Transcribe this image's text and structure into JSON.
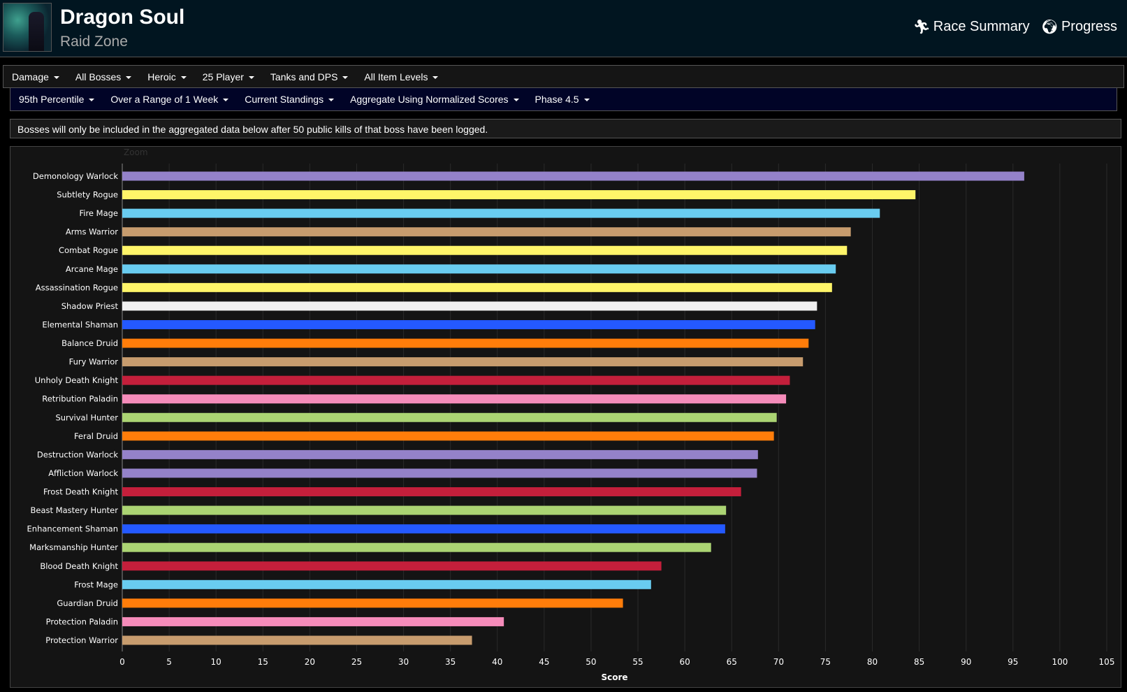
{
  "header": {
    "title": "Dragon Soul",
    "subtitle": "Raid Zone",
    "links": [
      {
        "icon": "running-icon",
        "label": "Race Summary"
      },
      {
        "icon": "globe-icon",
        "label": "Progress"
      }
    ]
  },
  "nav1": [
    "Damage",
    "All Bosses",
    "Heroic",
    "25 Player",
    "Tanks and DPS",
    "All Item Levels"
  ],
  "nav2": [
    "95th Percentile",
    "Over a Range of 1 Week",
    "Current Standings",
    "Aggregate Using Normalized Scores",
    "Phase 4.5"
  ],
  "notice": "Bosses will only be included in the aggregated data below after 50 public kills of that boss have been logged.",
  "chart_data": {
    "type": "bar",
    "orientation": "horizontal",
    "zoom_label": "Zoom",
    "xlabel": "Score",
    "ylabel": "",
    "xlim": [
      0,
      105
    ],
    "xticks": [
      0,
      5,
      10,
      15,
      20,
      25,
      30,
      35,
      40,
      45,
      50,
      55,
      60,
      65,
      70,
      75,
      80,
      85,
      90,
      95,
      100,
      105
    ],
    "grid": true,
    "categories": [
      "Demonology Warlock",
      "Subtlety Rogue",
      "Fire Mage",
      "Arms Warrior",
      "Combat Rogue",
      "Arcane Mage",
      "Assassination Rogue",
      "Shadow Priest",
      "Elemental Shaman",
      "Balance Druid",
      "Fury Warrior",
      "Unholy Death Knight",
      "Retribution Paladin",
      "Survival Hunter",
      "Feral Druid",
      "Destruction Warlock",
      "Affliction Warlock",
      "Frost Death Knight",
      "Beast Mastery Hunter",
      "Enhancement Shaman",
      "Marksmanship Hunter",
      "Blood Death Knight",
      "Frost Mage",
      "Guardian Druid",
      "Protection Paladin",
      "Protection Warrior"
    ],
    "values": [
      96.2,
      84.6,
      80.8,
      77.7,
      77.3,
      76.1,
      75.7,
      74.1,
      73.9,
      73.2,
      72.6,
      71.2,
      70.8,
      69.8,
      69.5,
      67.8,
      67.7,
      66.0,
      64.4,
      64.3,
      62.8,
      57.5,
      56.4,
      53.4,
      40.7,
      37.3
    ],
    "colors": [
      "#9482C9",
      "#FFF569",
      "#69CCF0",
      "#C79C6E",
      "#FFF569",
      "#69CCF0",
      "#FFF569",
      "#F0F0F0",
      "#2459FF",
      "#FF7D0A",
      "#C79C6E",
      "#C41F3B",
      "#F58CBA",
      "#ABD473",
      "#FF7D0A",
      "#9482C9",
      "#9482C9",
      "#C41F3B",
      "#ABD473",
      "#2459FF",
      "#ABD473",
      "#C41F3B",
      "#69CCF0",
      "#FF7D0A",
      "#F58CBA",
      "#C79C6E"
    ]
  }
}
